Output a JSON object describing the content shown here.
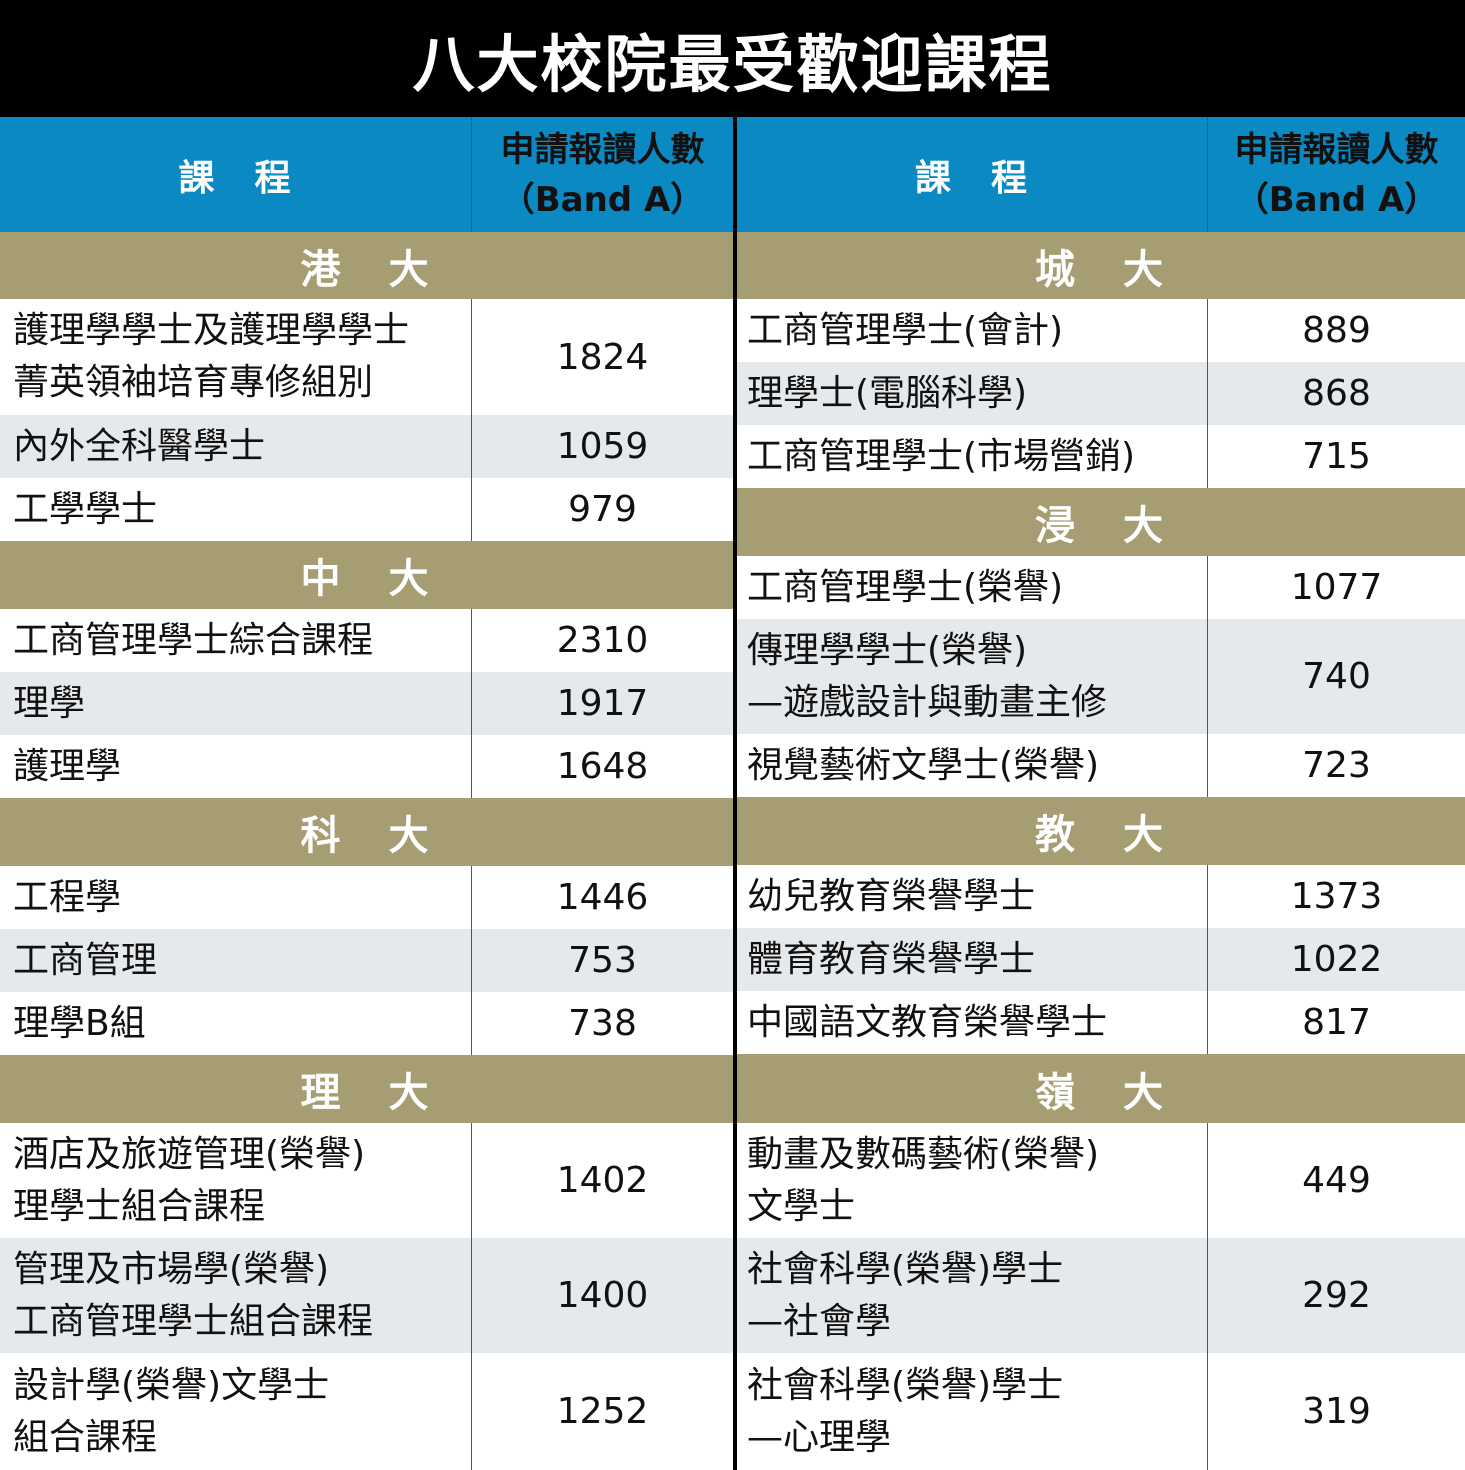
{
  "title": "八大校院最受歡迎課程",
  "header": {
    "course": "課　程",
    "count_line1": "申請報讀人數",
    "count_line2": "（Band A）"
  },
  "left": [
    {
      "uni": "港　大",
      "rows": [
        {
          "lines": [
            "護理學學士及護理學學士",
            "菁英領袖培育專修組別"
          ],
          "count": "1824"
        },
        {
          "lines": [
            "內外全科醫學士"
          ],
          "count": "1059"
        },
        {
          "lines": [
            "工學學士"
          ],
          "count": "979"
        }
      ]
    },
    {
      "uni": "中　大",
      "rows": [
        {
          "lines": [
            "工商管理學士綜合課程"
          ],
          "count": "2310"
        },
        {
          "lines": [
            "理學"
          ],
          "count": "1917"
        },
        {
          "lines": [
            "護理學"
          ],
          "count": "1648"
        }
      ]
    },
    {
      "uni": "科　大",
      "rows": [
        {
          "lines": [
            "工程學"
          ],
          "count": "1446"
        },
        {
          "lines": [
            "工商管理"
          ],
          "count": "753"
        },
        {
          "lines": [
            "理學B組"
          ],
          "count": "738"
        }
      ]
    },
    {
      "uni": "理　大",
      "rows": [
        {
          "lines": [
            "酒店及旅遊管理(榮譽)",
            "理學士組合課程"
          ],
          "count": "1402"
        },
        {
          "lines": [
            "管理及市場學(榮譽)",
            "工商管理學士組合課程"
          ],
          "count": "1400"
        },
        {
          "lines": [
            "設計學(榮譽)文學士",
            "組合課程"
          ],
          "count": "1252"
        }
      ]
    }
  ],
  "right": [
    {
      "uni": "城　大",
      "rows": [
        {
          "lines": [
            "工商管理學士(會計)"
          ],
          "count": "889"
        },
        {
          "lines": [
            "理學士(電腦科學)"
          ],
          "count": "868"
        },
        {
          "lines": [
            "工商管理學士(市場營銷)"
          ],
          "count": "715"
        }
      ]
    },
    {
      "uni": "浸　大",
      "rows": [
        {
          "lines": [
            "工商管理學士(榮譽)"
          ],
          "count": "1077"
        },
        {
          "lines": [
            "傳理學學士(榮譽)",
            "—遊戲設計與動畫主修"
          ],
          "count": "740"
        },
        {
          "lines": [
            "視覺藝術文學士(榮譽)"
          ],
          "count": "723"
        }
      ]
    },
    {
      "uni": "教　大",
      "rows": [
        {
          "lines": [
            "幼兒教育榮譽學士"
          ],
          "count": "1373"
        },
        {
          "lines": [
            "體育教育榮譽學士"
          ],
          "count": "1022"
        },
        {
          "lines": [
            "中國語文教育榮譽學士"
          ],
          "count": "817"
        }
      ]
    },
    {
      "uni": "嶺　大",
      "rows": [
        {
          "lines": [
            "動畫及數碼藝術(榮譽)",
            "文學士"
          ],
          "count": "449"
        },
        {
          "lines": [
            "社會科學(榮譽)學士",
            "—社會學"
          ],
          "count": "292"
        },
        {
          "lines": [
            "社會科學(榮譽)學士",
            "—心理學"
          ],
          "count": "319"
        }
      ]
    }
  ]
}
